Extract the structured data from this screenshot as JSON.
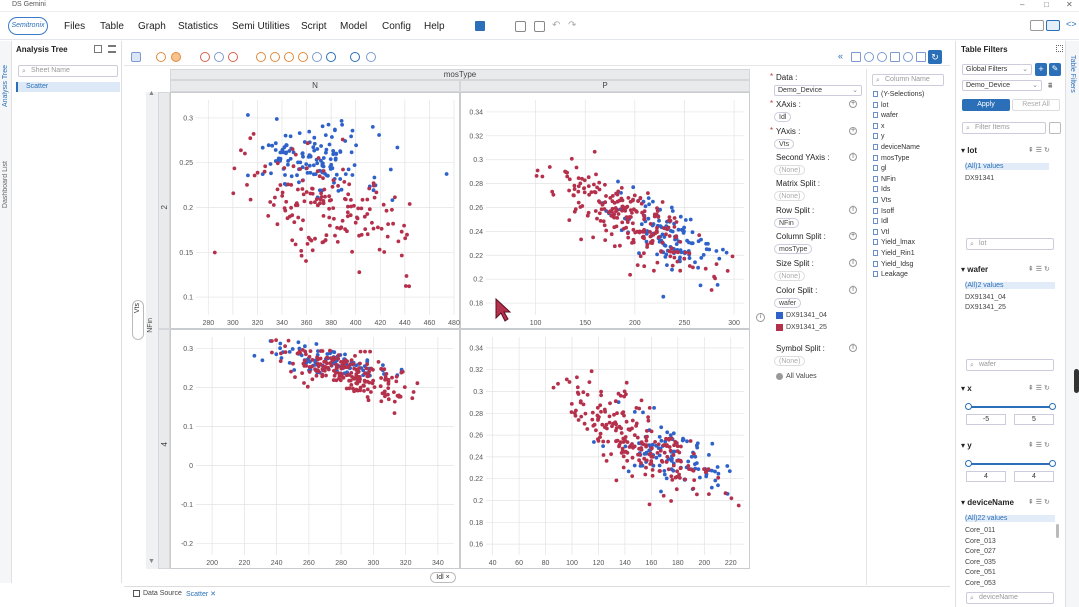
{
  "window": {
    "title": "DS Gemini",
    "controls": [
      "–",
      "□",
      "✕"
    ]
  },
  "menu": {
    "logo": "Semitronix",
    "items": [
      "Files",
      "Table",
      "Graph",
      "Statistics",
      "Semi Utilities",
      "Script",
      "Model",
      "Config",
      "Help"
    ]
  },
  "left_panel": {
    "vertical_tabs": [
      "Analysis Tree",
      "Dashboard List"
    ],
    "title": "Analysis Tree",
    "search_placeholder": "Sheet Name",
    "tree_item": "Scatter"
  },
  "plot": {
    "facet_col_title": "mosType",
    "col_labels": [
      "N",
      "P"
    ],
    "row_labels": [
      "2",
      "4"
    ],
    "y_axis_chips": [
      "Vts",
      "NFin"
    ],
    "x_axis_chip": "Idl",
    "ticks": {
      "p1x": [
        "280",
        "300",
        "320",
        "340",
        "360",
        "380",
        "400",
        "420",
        "440",
        "460",
        "480"
      ],
      "p1y": [
        "0.3",
        "0.25",
        "0.2",
        "0.15",
        "0.1"
      ],
      "p2x": [
        "100",
        "150",
        "200",
        "250",
        "300"
      ],
      "p2y": [
        "0.34",
        "0.32",
        "0.3",
        "0.28",
        "0.26",
        "0.24",
        "0.22",
        "0.2",
        "0.18"
      ],
      "p3x": [
        "200",
        "220",
        "240",
        "260",
        "280",
        "300",
        "320",
        "340"
      ],
      "p3y": [
        "0.3",
        "0.2",
        "0.1",
        "0",
        "-0.1",
        "-0.2"
      ],
      "p4x": [
        "40",
        "60",
        "80",
        "100",
        "120",
        "140",
        "160",
        "180",
        "200",
        "220"
      ],
      "p4y": [
        "0.34",
        "0.32",
        "0.3",
        "0.28",
        "0.26",
        "0.24",
        "0.22",
        "0.2",
        "0.18",
        "0.16"
      ]
    }
  },
  "chart_data": {
    "type": "scatter",
    "title": "",
    "facets": {
      "columns": "mosType",
      "rows": "NFin",
      "column_values": [
        "N",
        "P"
      ],
      "row_values": [
        "2",
        "4"
      ]
    },
    "xlabel": "Idl",
    "ylabel": "Vts",
    "series": [
      {
        "name": "DX91341_04",
        "color": "#2f62c9"
      },
      {
        "name": "DX91341_25",
        "color": "#b5304b"
      }
    ],
    "panels": [
      {
        "column": "N",
        "row": "2",
        "xlim": [
          270,
          480
        ],
        "ylim": [
          0.08,
          0.32
        ],
        "clusters": [
          {
            "series": "DX91341_04",
            "n": 140,
            "cx": 365,
            "cy": 0.255,
            "sx": 28,
            "sy": 0.022,
            "rho": -0.3
          },
          {
            "series": "DX91341_25",
            "n": 170,
            "cx": 380,
            "cy": 0.2,
            "sx": 35,
            "sy": 0.03,
            "rho": -0.5
          }
        ]
      },
      {
        "column": "P",
        "row": "2",
        "xlim": [
          50,
          310
        ],
        "ylim": [
          0.17,
          0.35
        ],
        "clusters": [
          {
            "series": "DX91341_04",
            "n": 120,
            "cx": 235,
            "cy": 0.235,
            "sx": 28,
            "sy": 0.016,
            "rho": -0.6
          },
          {
            "series": "DX91341_25",
            "n": 220,
            "cx": 195,
            "cy": 0.25,
            "sx": 38,
            "sy": 0.022,
            "rho": -0.75
          }
        ]
      },
      {
        "column": "N",
        "row": "4",
        "xlim": [
          190,
          350
        ],
        "ylim": [
          -0.23,
          0.33
        ],
        "clusters": [
          {
            "series": "DX91341_04",
            "n": 90,
            "cx": 270,
            "cy": 0.27,
            "sx": 18,
            "sy": 0.02,
            "rho": -0.6
          },
          {
            "series": "DX91341_25",
            "n": 200,
            "cx": 282,
            "cy": 0.24,
            "sx": 20,
            "sy": 0.035,
            "rho": -0.7
          }
        ]
      },
      {
        "column": "P",
        "row": "4",
        "xlim": [
          35,
          230
        ],
        "ylim": [
          0.15,
          0.35
        ],
        "clusters": [
          {
            "series": "DX91341_04",
            "n": 100,
            "cx": 175,
            "cy": 0.24,
            "sx": 20,
            "sy": 0.016,
            "rho": -0.6
          },
          {
            "series": "DX91341_25",
            "n": 220,
            "cx": 150,
            "cy": 0.255,
            "sx": 26,
            "sy": 0.025,
            "rho": -0.75
          }
        ]
      }
    ],
    "legend_placement": "right",
    "grid": true
  },
  "config": {
    "data_label": "Data :",
    "data_value": "Demo_Device",
    "xaxis_label": "XAxis :",
    "xaxis_chip": "Idl",
    "yaxis_label": "YAxis :",
    "yaxis_chip": "Vts",
    "second_yaxis_label": "Second YAxis :",
    "matrix_split_label": "Matrix Split :",
    "row_split_label": "Row Split :",
    "row_split_chip": "NFin",
    "column_split_label": "Column Split :",
    "column_split_chip": "mosType",
    "size_split_label": "Size Split :",
    "color_split_label": "Color Split :",
    "color_split_chip": "wafer",
    "color_legend": [
      "DX91341_04",
      "DX91341_25"
    ],
    "symbol_split_label": "Symbol Split :",
    "symbol_all_values": "All Values",
    "none_text": "(None)"
  },
  "columns": {
    "search_placeholder": "Column Name",
    "items": [
      "(Y-Selections)",
      "lot",
      "wafer",
      "x",
      "y",
      "deviceName",
      "mosType",
      "gl",
      "NFin",
      "Ids",
      "Vts",
      "Isoff",
      "Idl",
      "Vtl",
      "Yield_lmax",
      "Yield_Rin1",
      "Yield_Idsg",
      "Leakage"
    ]
  },
  "table_filters": {
    "title": "Table Filters",
    "scope": "Global Filters",
    "table": "Demo_Device",
    "apply": "Apply",
    "reset": "Reset All",
    "filter_placeholder": "Filter Items",
    "lot": {
      "title": "lot",
      "all": "(All)1 values",
      "values": [
        "DX91341"
      ],
      "search": "lot"
    },
    "wafer": {
      "title": "wafer",
      "all": "(All)2 values",
      "values": [
        "DX91341_04",
        "DX91341_25"
      ],
      "search": "wafer"
    },
    "x": {
      "title": "x",
      "min": "-5",
      "max": "5"
    },
    "y": {
      "title": "y",
      "min": "4",
      "max": "4"
    },
    "deviceName": {
      "title": "deviceName",
      "all": "(All)22 values",
      "values": [
        "Core_011",
        "Core_013",
        "Core_027",
        "Core_035",
        "Core_051",
        "Core_053"
      ],
      "search": "deviceName"
    }
  },
  "right_strip": {
    "label": "Table Filters"
  },
  "bottom_tabs": [
    "Data Source",
    "Scatter"
  ]
}
